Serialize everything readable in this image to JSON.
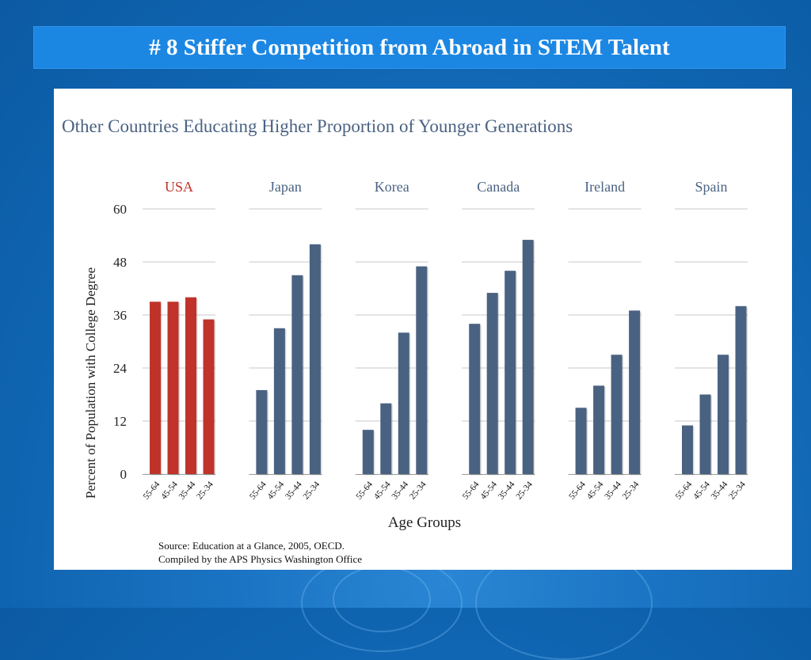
{
  "slide": {
    "title": "# 8 Stiffer Competition from Abroad in STEM Talent"
  },
  "chart_data": {
    "type": "bar",
    "title": "Other Countries Educating Higher Proportion of Younger Generations",
    "ylabel": "Percent of Population with College Degree",
    "xlabel": "Age Groups",
    "ylim": [
      0,
      60
    ],
    "yticks": [
      "0",
      "12",
      "24",
      "36",
      "48",
      "60"
    ],
    "categories": [
      "55-64",
      "45-54",
      "35-44",
      "25-34"
    ],
    "series": [
      {
        "name": "USA",
        "color": "#c0332a",
        "values": [
          39,
          39,
          40,
          35
        ]
      },
      {
        "name": "Japan",
        "color": "#4a6282",
        "values": [
          19,
          33,
          45,
          52
        ]
      },
      {
        "name": "Korea",
        "color": "#4a6282",
        "values": [
          10,
          16,
          32,
          47
        ]
      },
      {
        "name": "Canada",
        "color": "#4a6282",
        "values": [
          34,
          41,
          46,
          53
        ]
      },
      {
        "name": "Ireland",
        "color": "#4a6282",
        "values": [
          15,
          20,
          27,
          37
        ]
      },
      {
        "name": "Spain",
        "color": "#4a6282",
        "values": [
          11,
          18,
          27,
          38
        ]
      }
    ],
    "grid": true,
    "source": [
      "Source: Education at a Glance, 2005, OECD.",
      "Compiled by the APS Physics Washington Office"
    ]
  }
}
